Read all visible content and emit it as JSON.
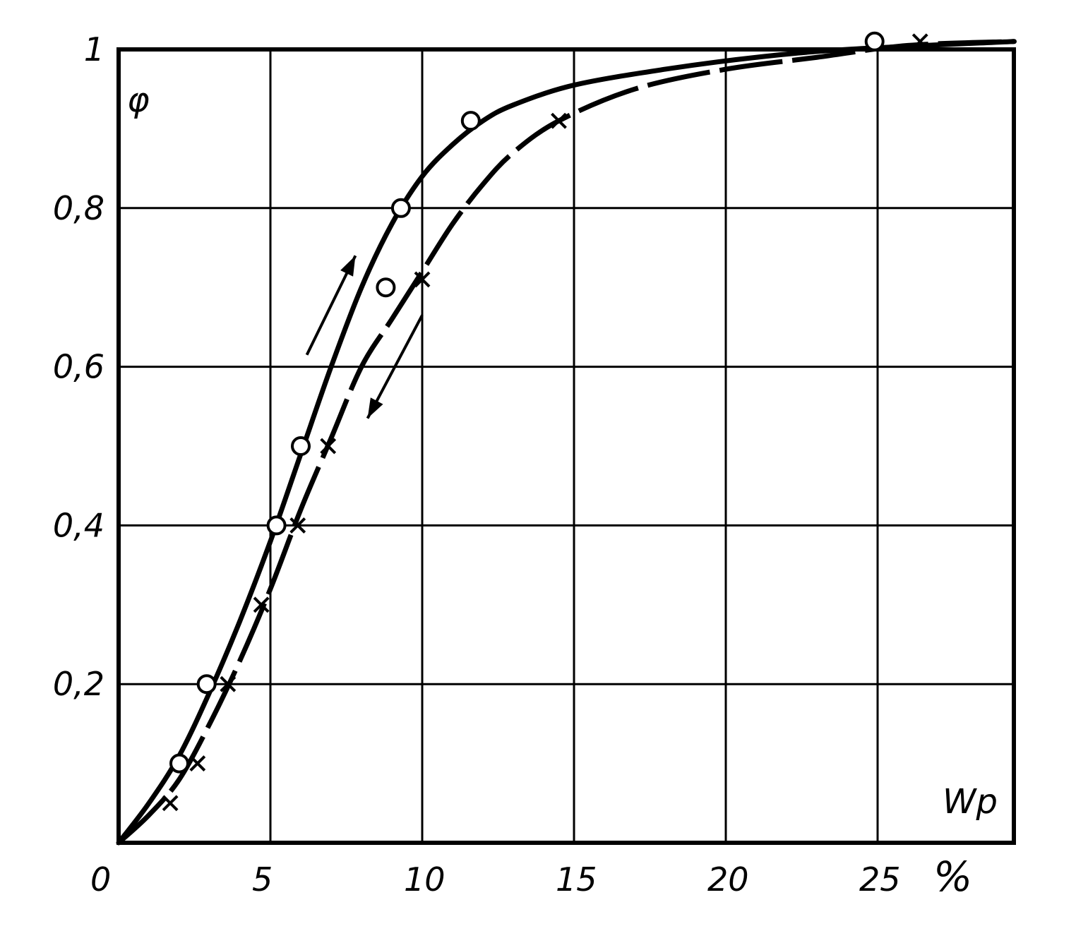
{
  "chart_data": {
    "type": "line",
    "title": "",
    "ylabel": "φ",
    "xlabel": "Wp",
    "x_unit": "%",
    "xlim": [
      0,
      30
    ],
    "ylim": [
      0,
      1
    ],
    "x_ticks": [
      0,
      5,
      10,
      15,
      20,
      25
    ],
    "x_tick_labels": [
      "0",
      "5",
      "10",
      "15",
      "20",
      "25"
    ],
    "y_ticks": [
      0.2,
      0.4,
      0.6,
      0.8,
      1.0
    ],
    "y_tick_labels": [
      "0,2",
      "0,4",
      "0,6",
      "0,8",
      "1"
    ],
    "grid": true,
    "series": [
      {
        "marker": "circle",
        "line_style": "solid",
        "direction": "up",
        "points": [
          {
            "x": 2.0,
            "y": 0.1
          },
          {
            "x": 2.9,
            "y": 0.2
          },
          {
            "x": 5.2,
            "y": 0.4
          },
          {
            "x": 6.0,
            "y": 0.5
          },
          {
            "x": 8.8,
            "y": 0.7
          },
          {
            "x": 9.3,
            "y": 0.8
          },
          {
            "x": 11.6,
            "y": 0.91
          },
          {
            "x": 24.9,
            "y": 1.01
          }
        ],
        "curve": [
          {
            "x": 0,
            "y": 0
          },
          {
            "x": 1,
            "y": 0.05
          },
          {
            "x": 2,
            "y": 0.11
          },
          {
            "x": 3,
            "y": 0.19
          },
          {
            "x": 4,
            "y": 0.28
          },
          {
            "x": 5,
            "y": 0.38
          },
          {
            "x": 6,
            "y": 0.49
          },
          {
            "x": 7,
            "y": 0.6
          },
          {
            "x": 8,
            "y": 0.7
          },
          {
            "x": 9,
            "y": 0.78
          },
          {
            "x": 10,
            "y": 0.84
          },
          {
            "x": 11,
            "y": 0.88
          },
          {
            "x": 12,
            "y": 0.91
          },
          {
            "x": 13,
            "y": 0.93
          },
          {
            "x": 15,
            "y": 0.955
          },
          {
            "x": 18,
            "y": 0.975
          },
          {
            "x": 21,
            "y": 0.99
          },
          {
            "x": 24,
            "y": 1.0
          },
          {
            "x": 29.5,
            "y": 1.01
          }
        ]
      },
      {
        "marker": "cross",
        "line_style": "dashed",
        "direction": "down",
        "points": [
          {
            "x": 1.7,
            "y": 0.05
          },
          {
            "x": 2.6,
            "y": 0.1
          },
          {
            "x": 3.6,
            "y": 0.2
          },
          {
            "x": 4.7,
            "y": 0.3
          },
          {
            "x": 5.9,
            "y": 0.4
          },
          {
            "x": 6.9,
            "y": 0.5
          },
          {
            "x": 10.0,
            "y": 0.71
          },
          {
            "x": 14.5,
            "y": 0.91
          },
          {
            "x": 26.4,
            "y": 1.01
          }
        ],
        "curve": [
          {
            "x": 0,
            "y": 0
          },
          {
            "x": 1,
            "y": 0.035
          },
          {
            "x": 2,
            "y": 0.08
          },
          {
            "x": 3,
            "y": 0.15
          },
          {
            "x": 4,
            "y": 0.23
          },
          {
            "x": 5,
            "y": 0.32
          },
          {
            "x": 6,
            "y": 0.42
          },
          {
            "x": 7,
            "y": 0.51
          },
          {
            "x": 8,
            "y": 0.6
          },
          {
            "x": 9,
            "y": 0.66
          },
          {
            "x": 10,
            "y": 0.72
          },
          {
            "x": 11,
            "y": 0.78
          },
          {
            "x": 12,
            "y": 0.83
          },
          {
            "x": 13,
            "y": 0.87
          },
          {
            "x": 14.5,
            "y": 0.91
          },
          {
            "x": 17,
            "y": 0.95
          },
          {
            "x": 20,
            "y": 0.975
          },
          {
            "x": 23,
            "y": 0.99
          },
          {
            "x": 26,
            "y": 1.005
          },
          {
            "x": 29.5,
            "y": 1.01
          }
        ]
      }
    ]
  }
}
